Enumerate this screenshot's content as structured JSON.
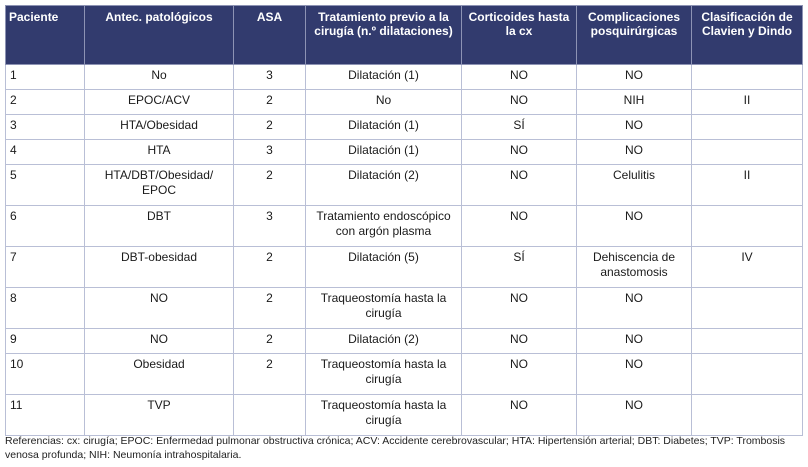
{
  "headers": {
    "paciente": "Paciente",
    "antecedentes": "Antec. patológicos",
    "asa": "ASA",
    "tratamiento": "Tratamiento previo a la cirugía (n.º dilataciones)",
    "corticoides": "Corticoides hasta la cx",
    "complicaciones": "Complicaciones posquirúrgicas",
    "clasificacion": "Clasificación de Clavien y Dindo"
  },
  "rows": [
    {
      "paciente": "1",
      "antecedentes": "No",
      "asa": "3",
      "tratamiento": "Dilatación (1)",
      "corticoides": "NO",
      "complicaciones": "NO",
      "clasificacion": ""
    },
    {
      "paciente": "2",
      "antecedentes": "EPOC/ACV",
      "asa": "2",
      "tratamiento": "No",
      "corticoides": "NO",
      "complicaciones": "NIH",
      "clasificacion": "II"
    },
    {
      "paciente": "3",
      "antecedentes": "HTA/Obesidad",
      "asa": "2",
      "tratamiento": "Dilatación (1)",
      "corticoides": "SÍ",
      "complicaciones": "NO",
      "clasificacion": ""
    },
    {
      "paciente": "4",
      "antecedentes": "HTA",
      "asa": "3",
      "tratamiento": "Dilatación (1)",
      "corticoides": "NO",
      "complicaciones": "NO",
      "clasificacion": ""
    },
    {
      "paciente": "5",
      "antecedentes": "HTA/DBT/Obesidad/ EPOC",
      "asa": "2",
      "tratamiento": "Dilatación (2)",
      "corticoides": "NO",
      "complicaciones": "Celulitis",
      "clasificacion": "II"
    },
    {
      "paciente": "6",
      "antecedentes": "DBT",
      "asa": "3",
      "tratamiento": "Tratamiento endoscópico con argón plasma",
      "corticoides": "NO",
      "complicaciones": "NO",
      "clasificacion": ""
    },
    {
      "paciente": "7",
      "antecedentes": "DBT-obesidad",
      "asa": "2",
      "tratamiento": "Dilatación (5)",
      "corticoides": "SÍ",
      "complicaciones": "Dehiscencia de anastomosis",
      "clasificacion": "IV"
    },
    {
      "paciente": "8",
      "antecedentes": "NO",
      "asa": "2",
      "tratamiento": "Traqueostomía hasta la cirugía",
      "corticoides": "NO",
      "complicaciones": "NO",
      "clasificacion": ""
    },
    {
      "paciente": "9",
      "antecedentes": "NO",
      "asa": "2",
      "tratamiento": "Dilatación (2)",
      "corticoides": "NO",
      "complicaciones": "NO",
      "clasificacion": ""
    },
    {
      "paciente": "10",
      "antecedentes": "Obesidad",
      "asa": "2",
      "tratamiento": "Traqueostomía hasta la cirugía",
      "corticoides": "NO",
      "complicaciones": "NO",
      "clasificacion": ""
    },
    {
      "paciente": "11",
      "antecedentes": "TVP",
      "asa": "",
      "tratamiento": "Traqueostomía hasta la cirugía",
      "corticoides": "NO",
      "complicaciones": "NO",
      "clasificacion": ""
    }
  ],
  "footnote": "Referencias: cx: cirugía; EPOC: Enfermedad pulmonar obstructiva crónica; ACV: Accidente cerebrovascular; HTA: Hipertensión arterial; DBT: Diabetes; TVP: Trombosis venosa profunda; NIH: Neumonía intrahospitalaria.",
  "colors": {
    "header_bg": "#323b6e",
    "header_text": "#ffffff",
    "grid": "#b9bfd6"
  }
}
